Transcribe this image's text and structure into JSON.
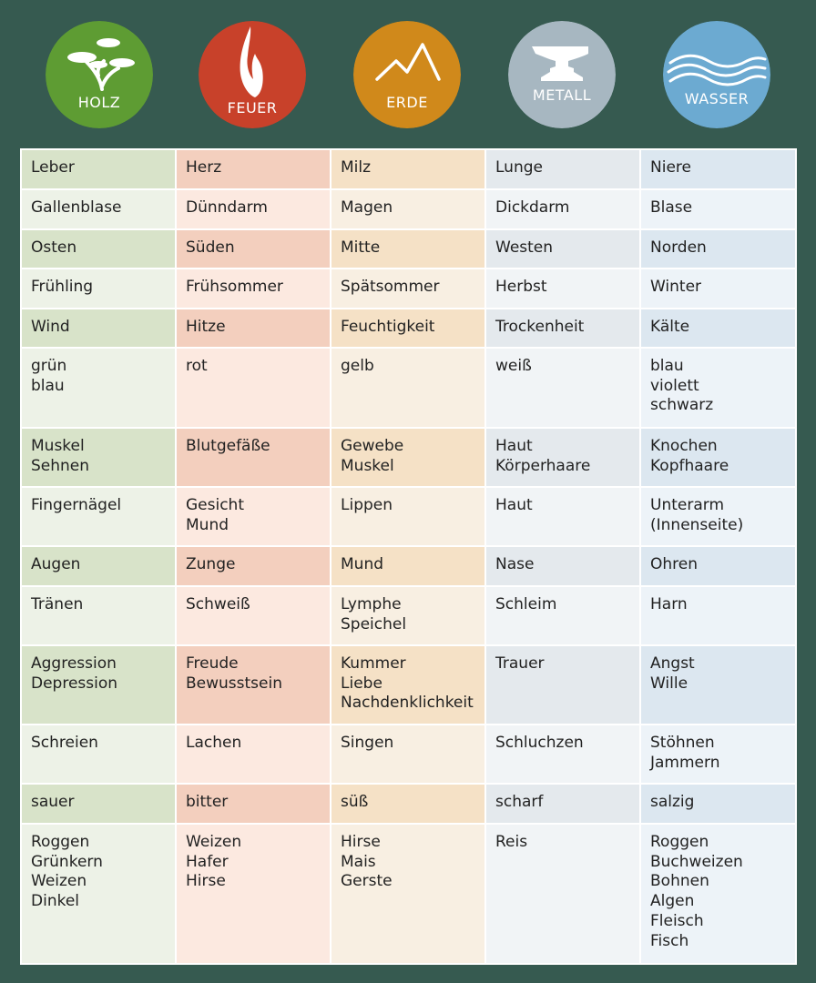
{
  "elements": [
    {
      "label": "HOLZ",
      "icon": "bonsai-icon",
      "color": "#5e9c33"
    },
    {
      "label": "FEUER",
      "icon": "flame-icon",
      "color": "#c8412a"
    },
    {
      "label": "ERDE",
      "icon": "mountain-icon",
      "color": "#d0891b"
    },
    {
      "label": "METALL",
      "icon": "anvil-icon",
      "color": "#a7b7c1"
    },
    {
      "label": "WASSER",
      "icon": "waves-icon",
      "color": "#6caad1"
    }
  ],
  "table": {
    "rows": [
      [
        "Leber",
        "Herz",
        "Milz",
        "Lunge",
        "Niere"
      ],
      [
        "Gallenblase",
        "Dünndarm",
        "Magen",
        "Dickdarm",
        "Blase"
      ],
      [
        "Osten",
        "Süden",
        "Mitte",
        "Westen",
        "Norden"
      ],
      [
        "Frühling",
        "Frühsommer",
        "Spätsommer",
        "Herbst",
        "Winter"
      ],
      [
        "Wind",
        "Hitze",
        "Feuchtigkeit",
        "Trockenheit",
        "Kälte"
      ],
      [
        "grün\nblau",
        "rot",
        "gelb",
        "weiß",
        "blau\nviolett\nschwarz"
      ],
      [
        "Muskel\nSehnen",
        "Blutgefäße",
        "Gewebe\nMuskel",
        "Haut\nKörperhaare",
        "Knochen\nKopfhaare"
      ],
      [
        "Fingernägel",
        "Gesicht\nMund",
        "Lippen",
        "Haut",
        "Unterarm\n(Innenseite)"
      ],
      [
        "Augen",
        "Zunge",
        "Mund",
        "Nase",
        "Ohren"
      ],
      [
        "Tränen",
        "Schweiß",
        "Lymphe\nSpeichel",
        "Schleim",
        "Harn"
      ],
      [
        "Aggression\nDepression",
        "Freude\nBewusstsein",
        "Kummer\nLiebe\nNachdenklichkeit",
        "Trauer",
        "Angst\nWille"
      ],
      [
        "Schreien",
        "Lachen",
        "Singen",
        "Schluchzen",
        "Stöhnen\nJammern"
      ],
      [
        "sauer",
        "bitter",
        "süß",
        "scharf",
        "salzig"
      ],
      [
        "Roggen\nGrünkern\nWeizen\nDinkel",
        "Weizen\nHafer\nHirse",
        "Hirse\nMais\nGerste",
        "Reis",
        "Roggen\nBuchweizen\nBohnen\nAlgen\nFleisch\nFisch"
      ]
    ]
  }
}
